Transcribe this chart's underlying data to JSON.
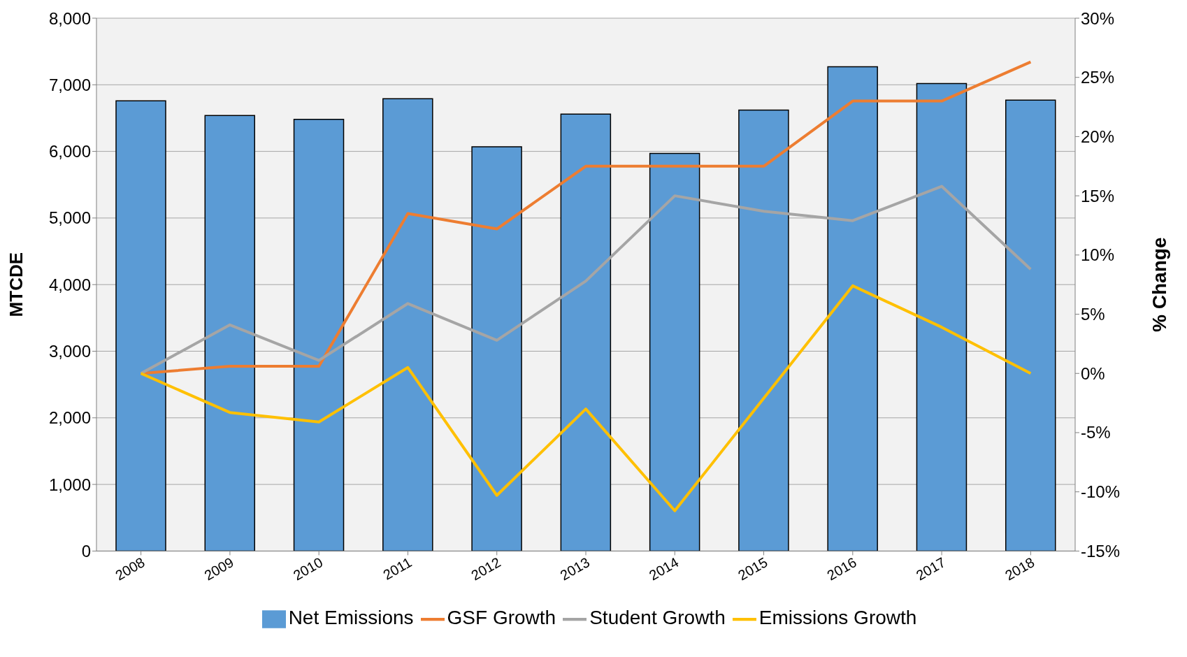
{
  "chart_data": {
    "type": "bar",
    "ylabel": "MTCDE",
    "y2label": "% Change",
    "categories": [
      "2008",
      "2009",
      "2010",
      "2011",
      "2012",
      "2013",
      "2014",
      "2015",
      "2016",
      "2017",
      "2018"
    ],
    "series": [
      {
        "name": "Net Emissions",
        "color": "#5b9bd5",
        "values": [
          6760,
          6540,
          6480,
          6790,
          6070,
          6560,
          5970,
          6620,
          7270,
          7020,
          6770
        ]
      },
      {
        "name": "GSF Growth",
        "type": "line",
        "axis": "y2",
        "color": "#ed7d31",
        "values": [
          0,
          0.6,
          0.6,
          13.5,
          12.2,
          17.5,
          17.5,
          17.5,
          23.0,
          23.0,
          26.3
        ]
      },
      {
        "name": "Student Growth",
        "type": "line",
        "axis": "y2",
        "color": "#a5a5a5",
        "values": [
          0,
          4.1,
          1.1,
          5.9,
          2.8,
          7.8,
          15.0,
          13.7,
          12.9,
          15.8,
          8.8
        ]
      },
      {
        "name": "Emissions Growth",
        "type": "line",
        "axis": "y2",
        "color": "#ffc000",
        "values": [
          0,
          -3.3,
          -4.1,
          0.5,
          -10.3,
          -3.0,
          -11.6,
          -2.1,
          7.4,
          3.9,
          0
        ]
      }
    ],
    "ylim": [
      0,
      8000
    ],
    "yticks": [
      {
        "value": 0,
        "label": "0"
      },
      {
        "value": 1000,
        "label": "1,000"
      },
      {
        "value": 2000,
        "label": "2,000"
      },
      {
        "value": 3000,
        "label": "3,000"
      },
      {
        "value": 4000,
        "label": "4,000"
      },
      {
        "value": 5000,
        "label": "5,000"
      },
      {
        "value": 6000,
        "label": "6,000"
      },
      {
        "value": 7000,
        "label": "7,000"
      },
      {
        "value": 8000,
        "label": "8,000"
      }
    ],
    "y2lim": [
      -15,
      30
    ],
    "y2ticks": [
      {
        "value": -15,
        "label": "-15%"
      },
      {
        "value": -10,
        "label": "-10%"
      },
      {
        "value": -5,
        "label": "-5%"
      },
      {
        "value": 0,
        "label": "0%"
      },
      {
        "value": 5,
        "label": "5%"
      },
      {
        "value": 10,
        "label": "10%"
      },
      {
        "value": 15,
        "label": "15%"
      },
      {
        "value": 20,
        "label": "20%"
      },
      {
        "value": 25,
        "label": "25%"
      },
      {
        "value": 30,
        "label": "30%"
      }
    ],
    "grid": "y",
    "legend": "bottom",
    "marker": "none",
    "line_style": "solid"
  }
}
